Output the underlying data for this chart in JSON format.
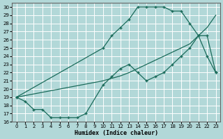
{
  "background_color": "#b2d8d8",
  "grid_color": "#ffffff",
  "line_color": "#1a6b5a",
  "xlim": [
    -0.5,
    23.5
  ],
  "ylim": [
    16,
    30.5
  ],
  "xlabel": "Humidex (Indice chaleur)",
  "yticks": [
    16,
    17,
    18,
    19,
    20,
    21,
    22,
    23,
    24,
    25,
    26,
    27,
    28,
    29,
    30
  ],
  "xticks": [
    0,
    1,
    2,
    3,
    4,
    5,
    6,
    7,
    8,
    9,
    10,
    11,
    12,
    13,
    14,
    15,
    16,
    17,
    18,
    19,
    20,
    21,
    22,
    23
  ],
  "line_upper_x": [
    0,
    10,
    11,
    12,
    13,
    14,
    15,
    16,
    17,
    18,
    19,
    20,
    21,
    22,
    23
  ],
  "line_upper_y": [
    19,
    25,
    26.5,
    27.5,
    28.5,
    30,
    30,
    30,
    30,
    29.5,
    29.5,
    28,
    26.5,
    26.5,
    22
  ],
  "line_mid_x": [
    0,
    1,
    2,
    3,
    4,
    5,
    6,
    7,
    8,
    9,
    10,
    11,
    12,
    13,
    14,
    15,
    16,
    17,
    18,
    19,
    20,
    21,
    22,
    23
  ],
  "line_mid_y": [
    19,
    19.2,
    19.4,
    19.6,
    19.8,
    20.0,
    20.2,
    20.4,
    20.6,
    20.8,
    21.0,
    21.3,
    21.6,
    22.0,
    22.5,
    23.0,
    23.5,
    24.0,
    24.5,
    25.0,
    25.5,
    26.5,
    27.5,
    29
  ],
  "line_lower_x": [
    0,
    1,
    2,
    3,
    4,
    5,
    6,
    7,
    8,
    10,
    11,
    12,
    13,
    14,
    15,
    16,
    17,
    18,
    19,
    20,
    21,
    22,
    23
  ],
  "line_lower_y": [
    19,
    18.5,
    17.5,
    17.5,
    16.5,
    16.5,
    16.5,
    16.5,
    17,
    20.5,
    21.5,
    22.5,
    23,
    22,
    21,
    21.5,
    22,
    23,
    24,
    25,
    26.5,
    24,
    22
  ]
}
